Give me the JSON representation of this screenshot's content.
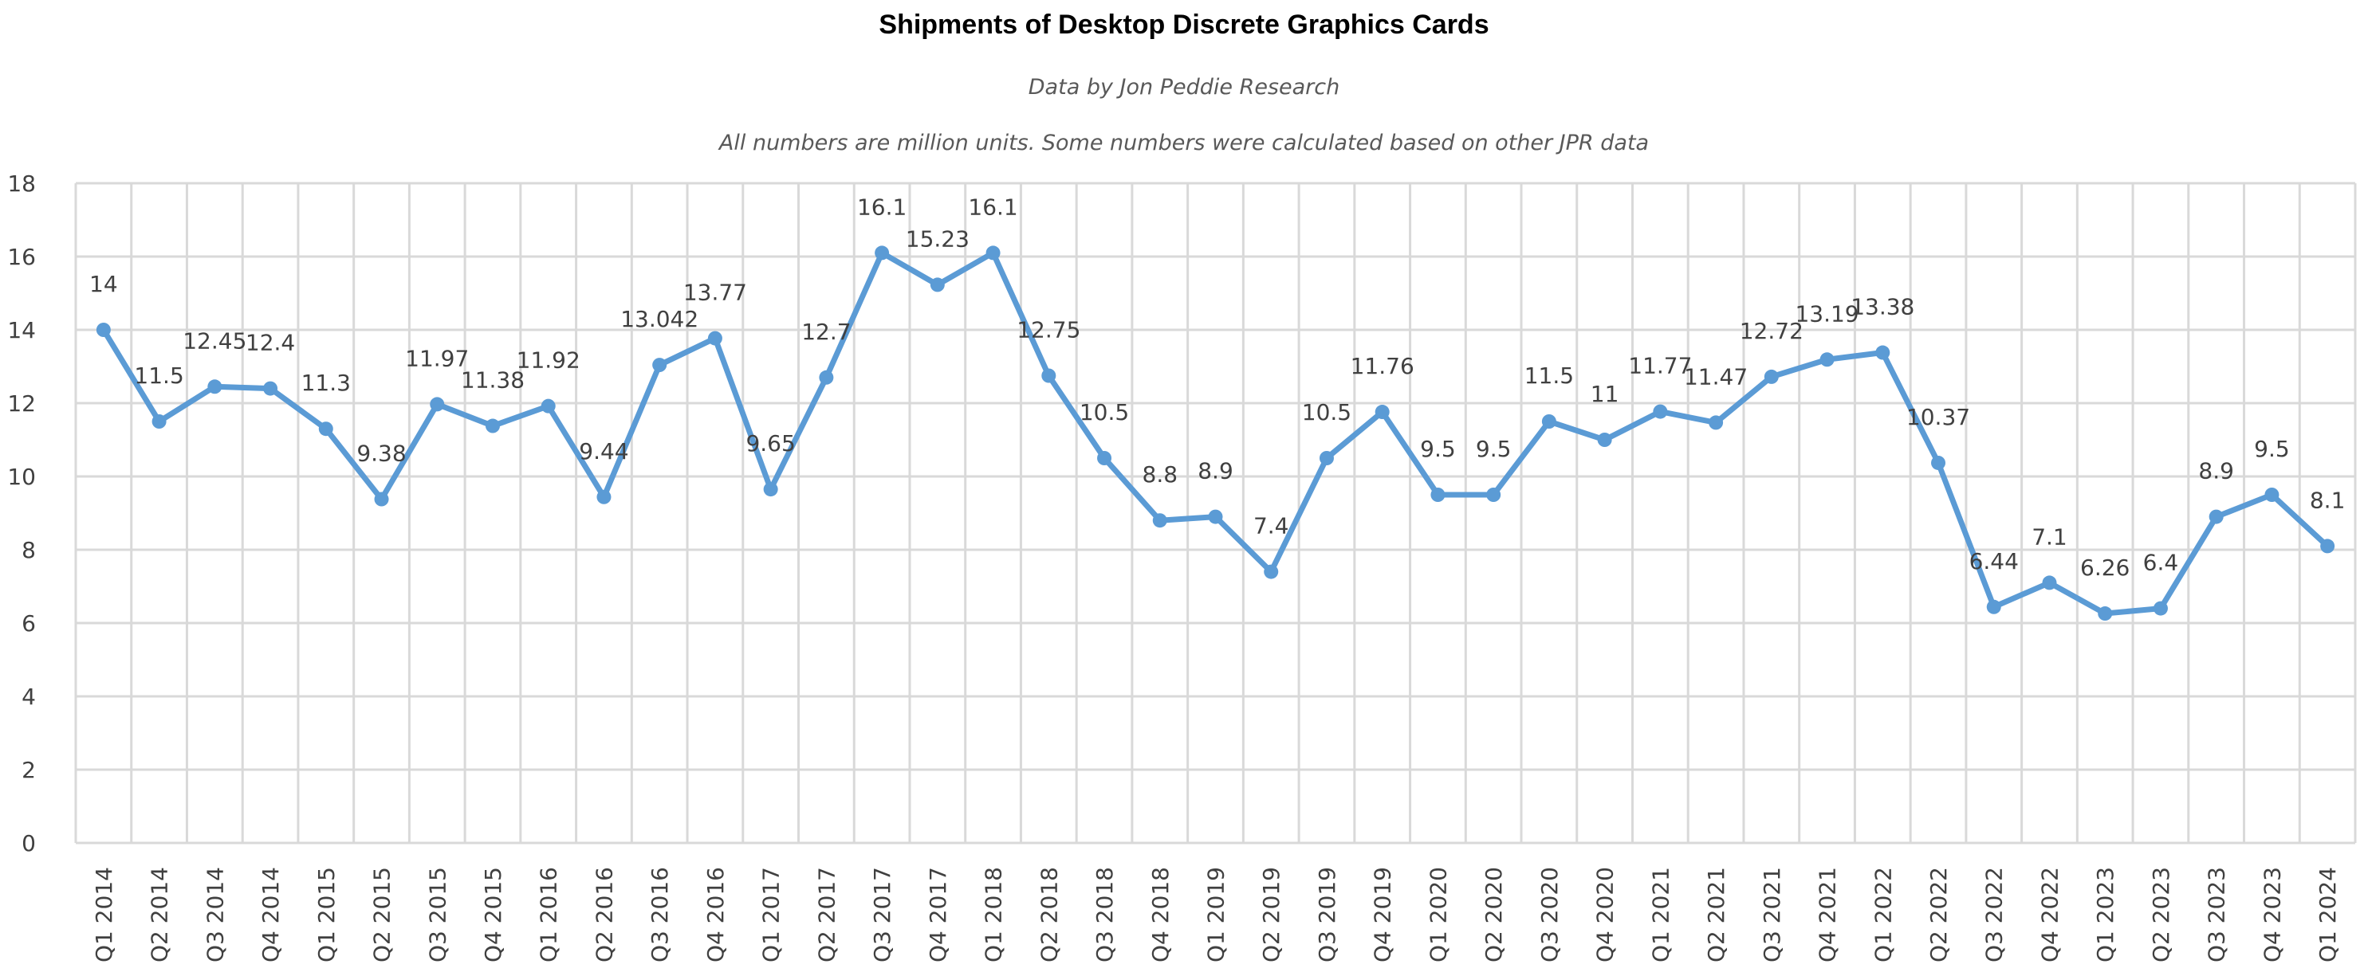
{
  "chart_data": {
    "type": "line",
    "title": "Shipments of Desktop Discrete Graphics Cards",
    "subtitle": "Data by Jon Peddie Research",
    "note": "All numbers are million units. Some numbers were calculated based on other JPR data",
    "xlabel": "",
    "ylabel": "",
    "ylim": [
      0,
      18
    ],
    "yticks": [
      0,
      2,
      4,
      6,
      8,
      10,
      12,
      14,
      16,
      18
    ],
    "grid": true,
    "legend": "none",
    "line_color": "#5b9bd5",
    "categories": [
      "Q1 2014",
      "Q2 2014",
      "Q3 2014",
      "Q4 2014",
      "Q1 2015",
      "Q2 2015",
      "Q3 2015",
      "Q4 2015",
      "Q1 2016",
      "Q2 2016",
      "Q3 2016",
      "Q4 2016",
      "Q1 2017",
      "Q2 2017",
      "Q3 2017",
      "Q4 2017",
      "Q1 2018",
      "Q2 2018",
      "Q3 2018",
      "Q4 2018",
      "Q1 2019",
      "Q2 2019",
      "Q3 2019",
      "Q4 2019",
      "Q1 2020",
      "Q2 2020",
      "Q3 2020",
      "Q4 2020",
      "Q1 2021",
      "Q2 2021",
      "Q3 2021",
      "Q4 2021",
      "Q1 2022",
      "Q2 2022",
      "Q3 2022",
      "Q4 2022",
      "Q1 2023",
      "Q2 2023",
      "Q3 2023",
      "Q4 2023",
      "Q1 2024"
    ],
    "values": [
      14,
      11.5,
      12.45,
      12.4,
      11.3,
      9.38,
      11.97,
      11.38,
      11.92,
      9.44,
      13.042,
      13.77,
      9.65,
      12.7,
      16.1,
      15.23,
      16.1,
      12.75,
      10.5,
      8.8,
      8.9,
      7.4,
      10.5,
      11.76,
      9.5,
      9.5,
      11.5,
      11,
      11.77,
      11.47,
      12.72,
      13.19,
      13.38,
      10.37,
      6.44,
      7.1,
      6.26,
      6.4,
      8.9,
      9.5,
      8.1
    ],
    "data_labels": [
      "14",
      "11.5",
      "12.45",
      "12.4",
      "11.3",
      "9.38",
      "11.97",
      "11.38",
      "11.92",
      "9.44",
      "13.042",
      "13.77",
      "9.65",
      "12.7",
      "16.1",
      "15.23",
      "16.1",
      "12.75",
      "10.5",
      "8.8",
      "8.9",
      "7.4",
      "10.5",
      "11.76",
      "9.5",
      "9.5",
      "11.5",
      "11",
      "11.77",
      "11.47",
      "12.72",
      "13.19",
      "13.38",
      "10.37",
      "6.44",
      "7.1",
      "6.26",
      "6.4",
      "8.9",
      "9.5",
      "8.1"
    ]
  }
}
